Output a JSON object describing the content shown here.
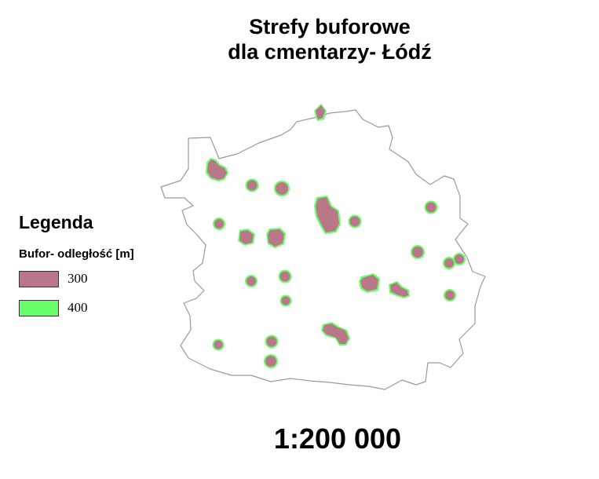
{
  "title": {
    "line1": "Strefy buforowe",
    "line2": "dla cmentarzy- Łódź"
  },
  "legend": {
    "heading": "Legenda",
    "subtitle": "Bufor- odległość [m]",
    "items": [
      {
        "label": "300",
        "color": "#b8788a"
      },
      {
        "label": "400",
        "color": "#66ff66"
      }
    ]
  },
  "scale": "1:200 000",
  "colors": {
    "buffer_300": "#b8788a",
    "buffer_400": "#66ff66",
    "boundary": "#9a9a9a"
  }
}
